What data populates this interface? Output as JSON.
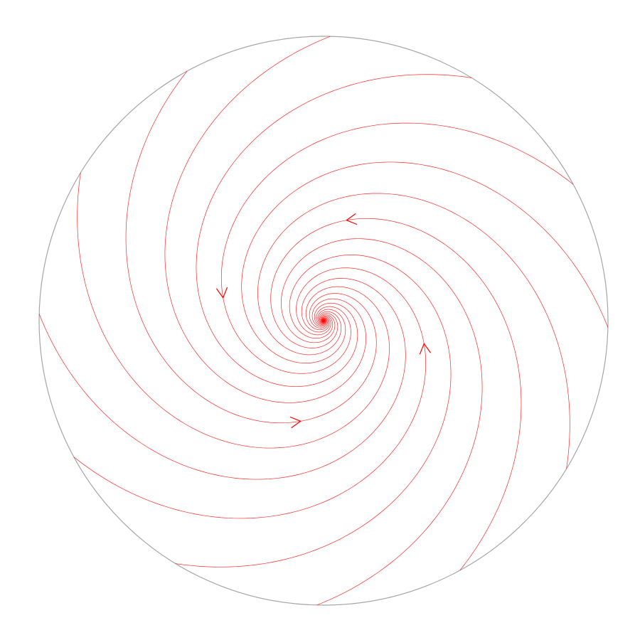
{
  "diagram": {
    "kind": "phase-portrait",
    "portrait": "stable-focus",
    "rotation": "counterclockwise",
    "trajectory_count": 12,
    "colors": {
      "boundary": "#a6a6a6",
      "trajectory": "#ff0000",
      "background": "#ffffff"
    }
  }
}
